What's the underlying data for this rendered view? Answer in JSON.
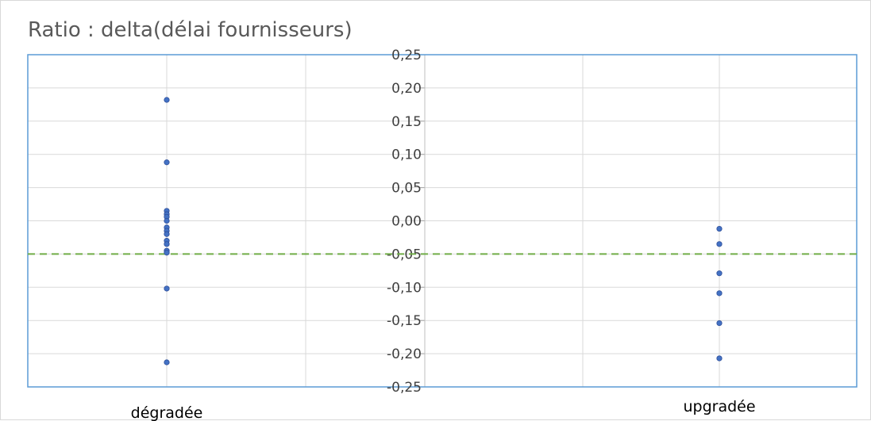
{
  "chart_data": {
    "type": "scatter",
    "title": "Ratio : delta(délai fournisseurs)",
    "categories": [
      "dégradée",
      "upgradée"
    ],
    "y_ticks": [
      "0,25",
      "0,20",
      "0,15",
      "0,10",
      "0,05",
      "0,00",
      "-0,05",
      "-0,10",
      "-0,15",
      "-0,20",
      "-0,25"
    ],
    "ylim": [
      -0.25,
      0.25
    ],
    "grid": true,
    "reference_line": {
      "value": -0.05,
      "color": "#70ad47",
      "style": "dashed"
    },
    "series": [
      {
        "category": "dégradée",
        "values": [
          0.182,
          0.088,
          0.015,
          0.01,
          0.006,
          0.0,
          -0.01,
          -0.015,
          -0.02,
          -0.03,
          -0.035,
          -0.045,
          -0.048,
          -0.102,
          -0.213
        ]
      },
      {
        "category": "upgradée",
        "values": [
          -0.012,
          -0.035,
          -0.079,
          -0.109,
          -0.154,
          -0.207
        ]
      }
    ],
    "colors": {
      "marker": "#4472c4",
      "marker_stroke": "#2f4f9a",
      "plot_border": "#5b9bd5",
      "grid": "#d9d9d9"
    }
  }
}
